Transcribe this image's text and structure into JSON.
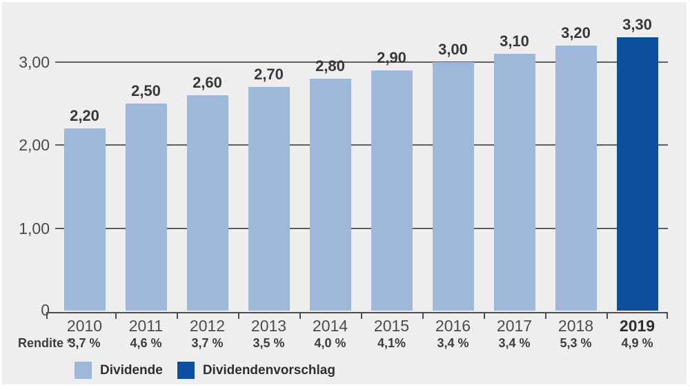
{
  "colors": {
    "panel_background": "#eeeeee",
    "bar_light_blue": "#9db8d8",
    "bar_dark_blue": "#0b4f9e",
    "gridline": "#5d5d5d",
    "axis": "#4d4d4d"
  },
  "chart_data": {
    "type": "bar",
    "title": "",
    "xlabel": "",
    "ylabel": "",
    "categories": [
      "2010",
      "2011",
      "2012",
      "2013",
      "2014",
      "2015",
      "2016",
      "2017",
      "2018",
      "2019"
    ],
    "values": [
      2.2,
      2.5,
      2.6,
      2.7,
      2.8,
      2.9,
      3.0,
      3.1,
      3.2,
      3.3
    ],
    "value_labels": [
      "2,20",
      "2,50",
      "2,60",
      "2,70",
      "2,80",
      "2,90",
      "3,00",
      "3,10",
      "3,20",
      "3,30"
    ],
    "series": [
      {
        "name": "Dividende",
        "color": "#9db8d8",
        "categories": [
          "2010",
          "2011",
          "2012",
          "2013",
          "2014",
          "2015",
          "2016",
          "2017",
          "2018"
        ]
      },
      {
        "name": "Dividendenvorschlag",
        "color": "#0b4f9e",
        "categories": [
          "2019"
        ]
      }
    ],
    "highlight_index": 9,
    "ylim": [
      0,
      3.45
    ],
    "y_ticks": [
      {
        "value": 0,
        "label": "0"
      },
      {
        "value": 1,
        "label": "1,00"
      },
      {
        "value": 2,
        "label": "2,00"
      },
      {
        "value": 3,
        "label": "3,00"
      }
    ],
    "grid": true,
    "legend_position": "bottom-left",
    "rendite_row": {
      "label": "Rendite *",
      "values": [
        "3,7 %",
        "4,6 %",
        "3,7 %",
        "3,5 %",
        "4,0 %",
        "4,1%",
        "3,4 %",
        "3,4 %",
        "5,3 %",
        "4,9 %"
      ]
    }
  },
  "legend": {
    "items": [
      {
        "label": "Dividende",
        "color": "#9db8d8"
      },
      {
        "label": "Dividendenvorschlag",
        "color": "#0b4f9e"
      }
    ]
  }
}
